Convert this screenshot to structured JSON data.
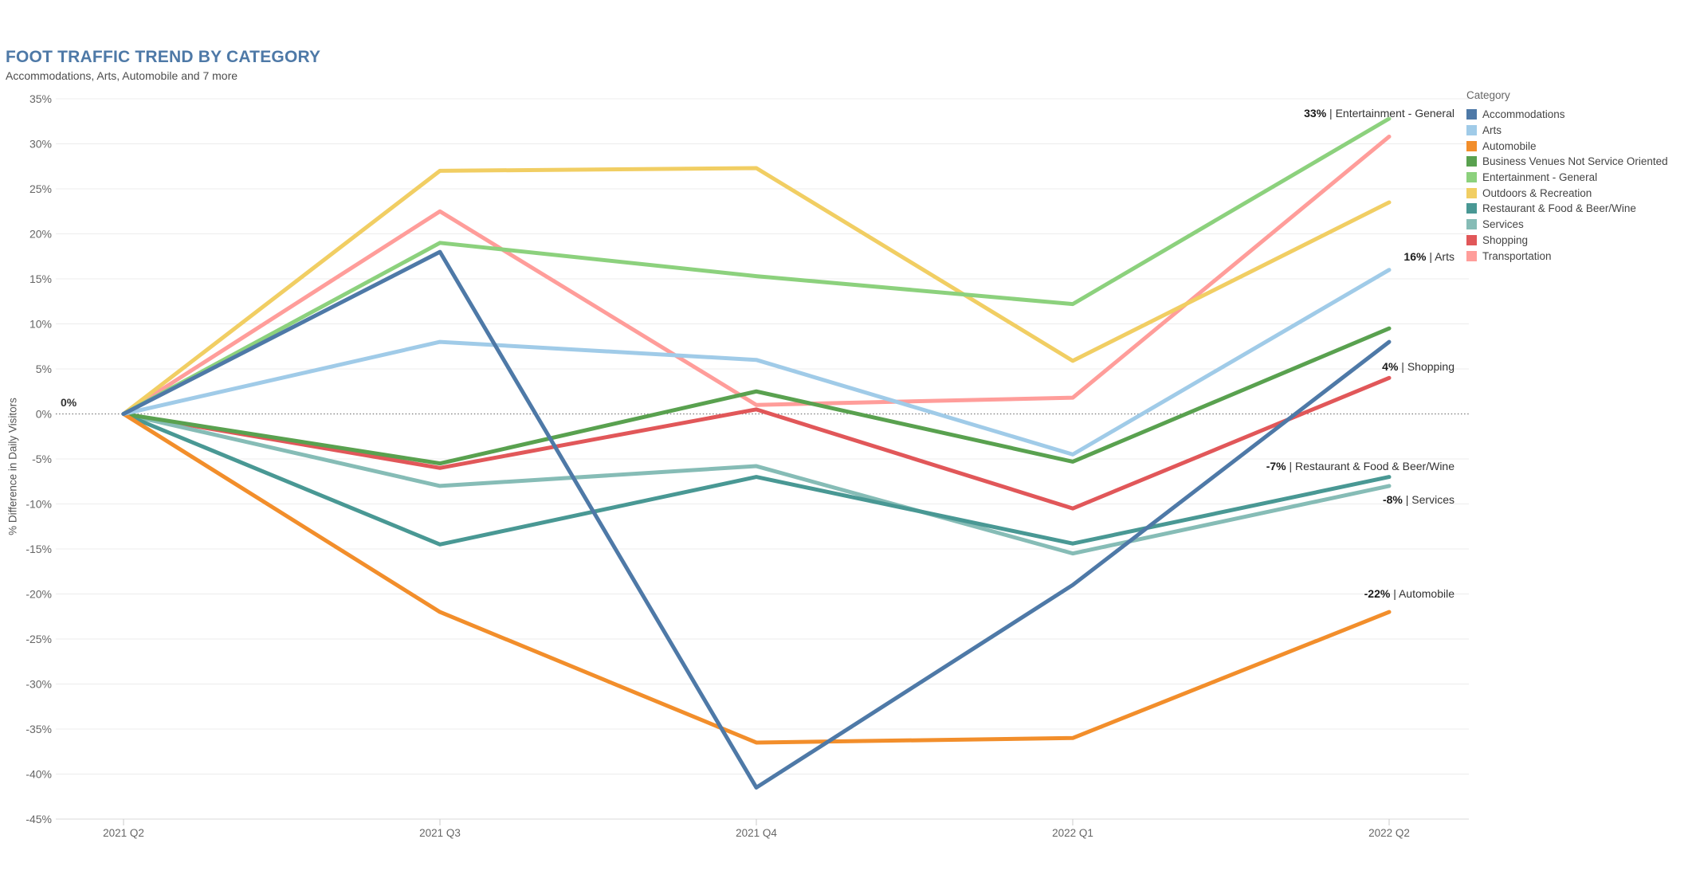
{
  "header": {
    "title": "FOOT TRAFFIC TREND BY CATEGORY",
    "subtitle": "Accommodations, Arts, Automobile and 7 more"
  },
  "legend": {
    "title": "Category",
    "items": [
      {
        "label": "Accommodations",
        "color": "#4e79a7"
      },
      {
        "label": "Arts",
        "color": "#a0cbe8"
      },
      {
        "label": "Automobile",
        "color": "#f28e2b"
      },
      {
        "label": "Business Venues Not Service Oriented",
        "color": "#59a14f"
      },
      {
        "label": "Entertainment - General",
        "color": "#8cd17d"
      },
      {
        "label": "Outdoors & Recreation",
        "color": "#f1ce63"
      },
      {
        "label": "Restaurant & Food & Beer/Wine",
        "color": "#499894"
      },
      {
        "label": "Services",
        "color": "#86bcb6"
      },
      {
        "label": "Shopping",
        "color": "#e15759"
      },
      {
        "label": "Transportation",
        "color": "#ff9d9a"
      }
    ]
  },
  "chart_data": {
    "type": "line",
    "title": "FOOT TRAFFIC TREND BY CATEGORY",
    "x_categories": [
      "2021 Q2",
      "2021 Q3",
      "2021 Q4",
      "2022 Q1",
      "2022 Q2"
    ],
    "xlabel": "",
    "ylabel": "% Difference in Daily Visitors",
    "ylim": [
      -45,
      35
    ],
    "y_ticks": [
      35,
      30,
      25,
      20,
      15,
      10,
      5,
      0,
      -5,
      -10,
      -15,
      -20,
      -25,
      -30,
      -35,
      -40,
      -45
    ],
    "y_tick_suffix": "%",
    "grid": true,
    "zero_reference_line": true,
    "legend_position": "right",
    "series": [
      {
        "name": "Accommodations",
        "color": "#4e79a7",
        "values": [
          0,
          18,
          -41.5,
          -19,
          8
        ]
      },
      {
        "name": "Arts",
        "color": "#a0cbe8",
        "values": [
          0,
          8,
          6,
          -4.5,
          16
        ]
      },
      {
        "name": "Automobile",
        "color": "#f28e2b",
        "values": [
          0,
          -22,
          -36.5,
          -36,
          -22
        ]
      },
      {
        "name": "Business Venues Not Service Oriented",
        "color": "#59a14f",
        "values": [
          0,
          -5.5,
          2.5,
          -5.3,
          9.5
        ]
      },
      {
        "name": "Entertainment - General",
        "color": "#8cd17d",
        "values": [
          0,
          19,
          15.3,
          12.2,
          32.8
        ]
      },
      {
        "name": "Outdoors & Recreation",
        "color": "#f1ce63",
        "values": [
          0,
          27,
          27.3,
          5.9,
          23.5
        ]
      },
      {
        "name": "Restaurant & Food & Beer/Wine",
        "color": "#499894",
        "values": [
          0,
          -14.5,
          -7,
          -14.4,
          -7
        ]
      },
      {
        "name": "Services",
        "color": "#86bcb6",
        "values": [
          0,
          -8,
          -5.8,
          -15.5,
          -8
        ]
      },
      {
        "name": "Shopping",
        "color": "#e15759",
        "values": [
          0,
          -6,
          0.5,
          -10.5,
          4
        ]
      },
      {
        "name": "Transportation",
        "color": "#ff9d9a",
        "values": [
          0,
          22.5,
          1,
          1.8,
          30.8
        ]
      }
    ],
    "start_annotation": "0%",
    "end_annotations": [
      {
        "value_label": "33%",
        "series": "Entertainment - General"
      },
      {
        "value_label": "16%",
        "series": "Arts"
      },
      {
        "value_label": "4%",
        "series": "Shopping"
      },
      {
        "value_label": "-7%",
        "series": "Restaurant & Food & Beer/Wine"
      },
      {
        "value_label": "-8%",
        "series": "Services"
      },
      {
        "value_label": "-22%",
        "series": "Automobile"
      }
    ],
    "annotation_separator": " | "
  }
}
